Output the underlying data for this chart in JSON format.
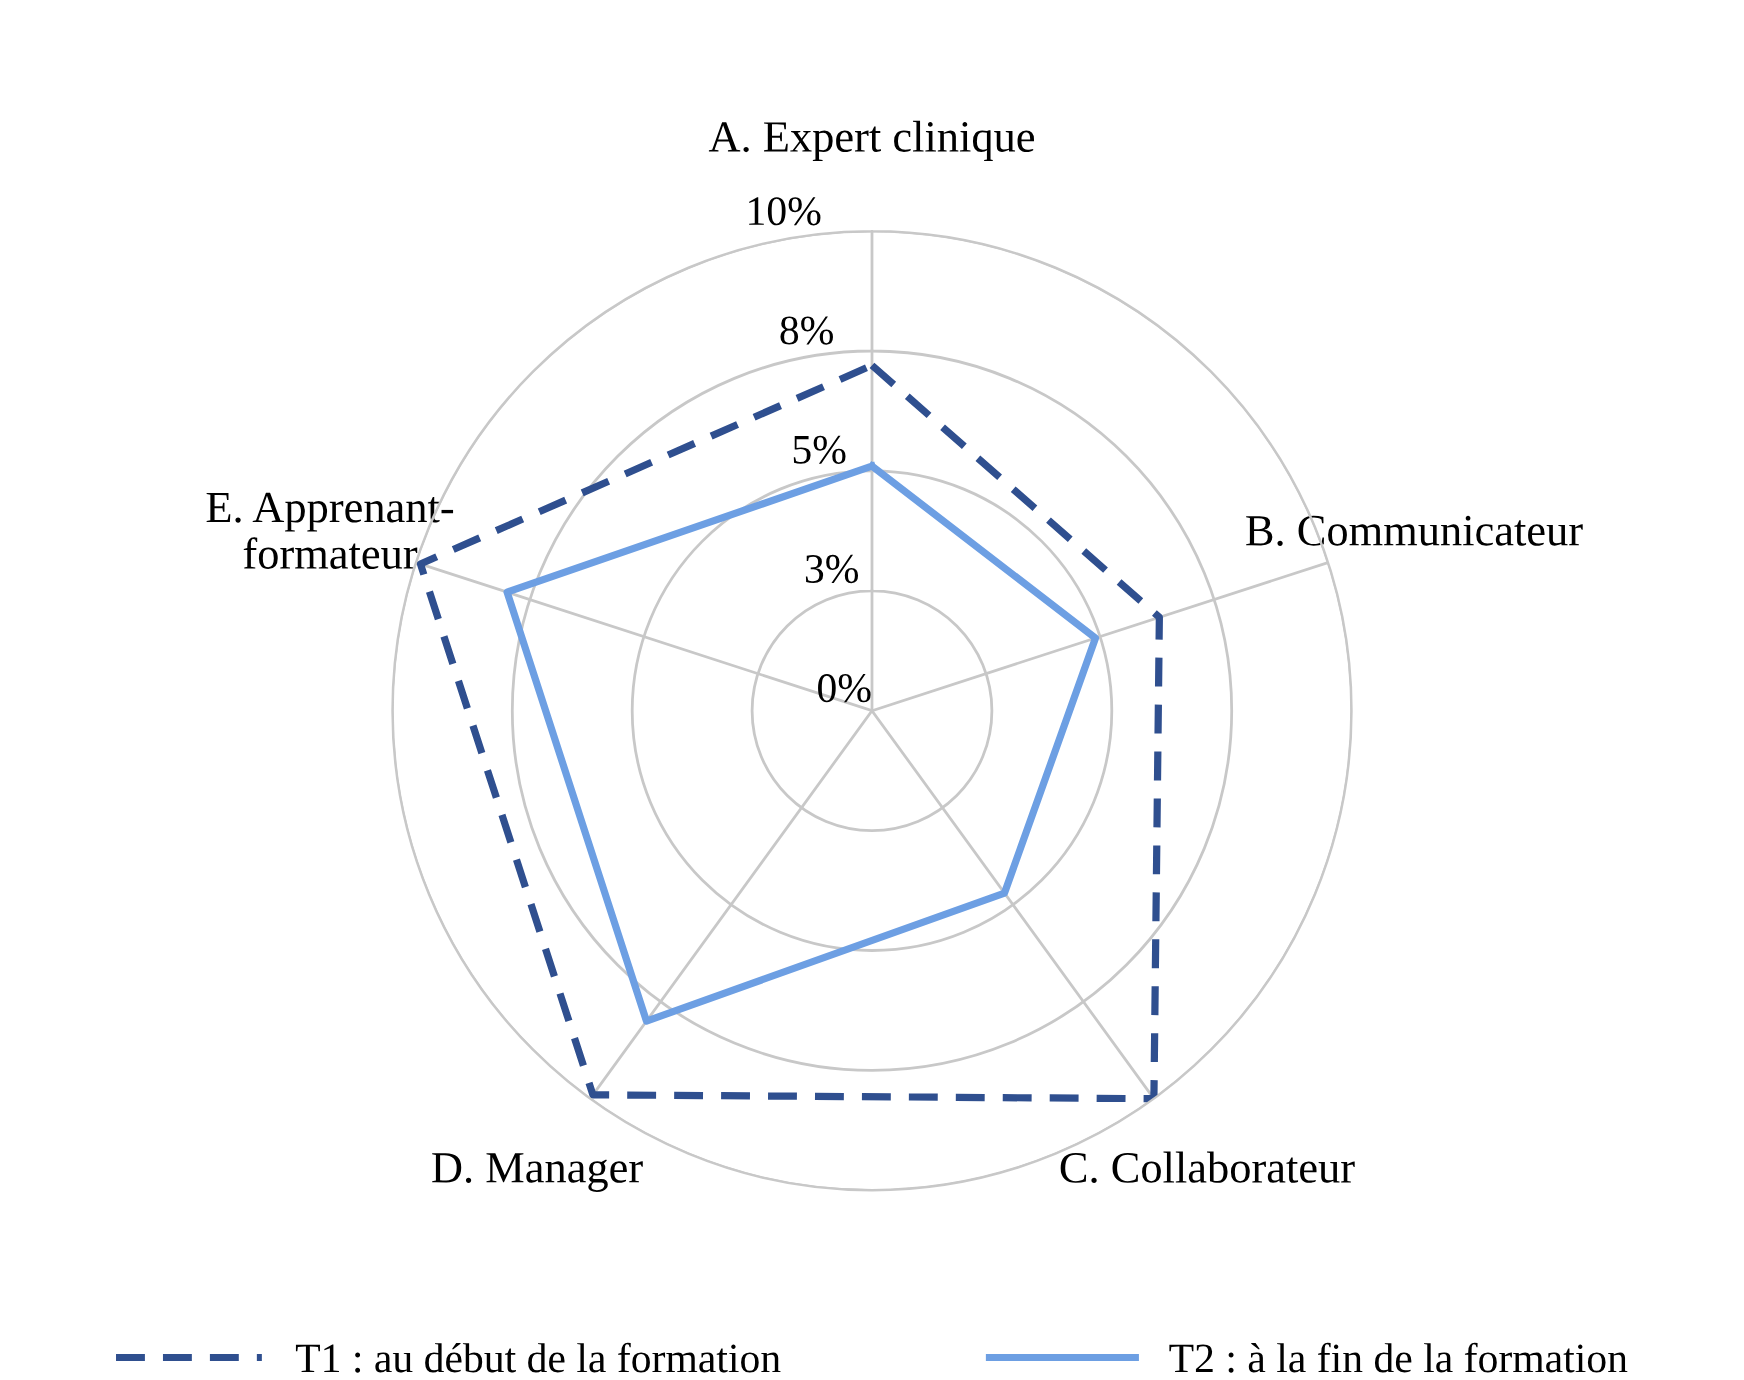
{
  "chart_data": {
    "type": "radar",
    "categories": [
      "A. Expert clinique",
      "B. Communicateur",
      "C. Collaborateur",
      "D. Manager",
      "E. Apprenant-\nformateur"
    ],
    "series": [
      {
        "name": "T1 : au début de la formation",
        "color": "#2f4f8f",
        "line_style": "dashed",
        "values": [
          7.2,
          6.3,
          10,
          9.9,
          9.9
        ]
      },
      {
        "name": "T2 : à la fin de la formation",
        "color": "#6d9fe3",
        "line_style": "solid",
        "values": [
          5.1,
          4.9,
          4.7,
          8.0,
          8.0
        ]
      }
    ],
    "ylim": [
      0,
      10
    ],
    "yticks": [
      {
        "value": 0,
        "label": "0%"
      },
      {
        "value": 2.5,
        "label": "3%"
      },
      {
        "value": 5,
        "label": "5%"
      },
      {
        "value": 7.5,
        "label": "8%"
      },
      {
        "value": 10,
        "label": "10%"
      }
    ],
    "grid": true,
    "legend": "bottom",
    "marker": "none"
  }
}
